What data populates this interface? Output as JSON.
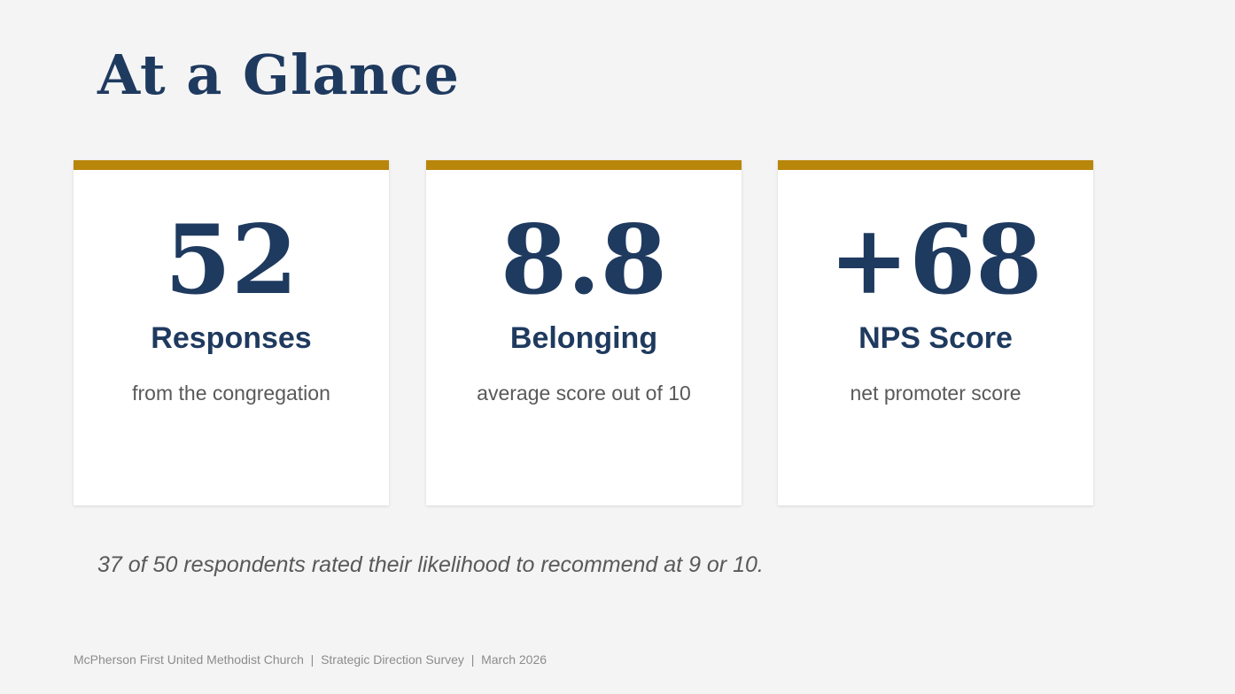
{
  "header": {
    "title": "At a Glance"
  },
  "cards": [
    {
      "value": "52",
      "label": "Responses",
      "description": "from the congregation"
    },
    {
      "value": "8.8",
      "label": "Belonging",
      "description": "average score out of 10"
    },
    {
      "value": "+68",
      "label": "NPS Score",
      "description": "net promoter score"
    }
  ],
  "note": "37 of 50 respondents rated their likelihood to recommend at 9 or 10.",
  "footer": "McPherson First United Methodist Church  |  Strategic Direction Survey  |  March 2026"
}
